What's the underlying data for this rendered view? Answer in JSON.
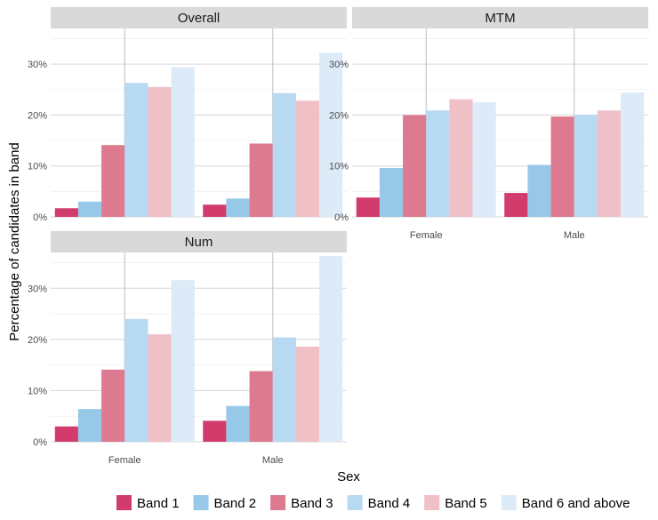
{
  "chart_data": {
    "type": "bar",
    "xlabel": "Sex",
    "ylabel": "Percentage of candidates in band",
    "ylim": [
      0,
      37
    ],
    "yticks": [
      "0%",
      "10%",
      "20%",
      "30%"
    ],
    "categories": [
      "Female",
      "Male"
    ],
    "legend_position": "bottom",
    "grid": true,
    "series_names": [
      "Band 1",
      "Band 2",
      "Band 3",
      "Band 4",
      "Band 5",
      "Band 6 and above"
    ],
    "colors": [
      "#d13c6c",
      "#97c8e8",
      "#de7a8f",
      "#b8d9f2",
      "#f0c0c7",
      "#ddeaf7"
    ],
    "panels": [
      {
        "title": "Overall",
        "values": {
          "Female": [
            1.7,
            3.0,
            14.1,
            26.3,
            25.5,
            29.4
          ],
          "Male": [
            2.4,
            3.6,
            14.4,
            24.3,
            22.8,
            32.2
          ]
        }
      },
      {
        "title": "MTM",
        "values": {
          "Female": [
            3.8,
            9.6,
            20.0,
            20.9,
            23.1,
            22.5
          ],
          "Male": [
            4.7,
            10.2,
            19.7,
            20.0,
            20.9,
            24.4
          ]
        }
      },
      {
        "title": "Num",
        "values": {
          "Female": [
            3.0,
            6.4,
            14.1,
            24.0,
            21.0,
            31.6
          ],
          "Male": [
            4.1,
            7.0,
            13.8,
            20.4,
            18.6,
            36.3
          ]
        }
      }
    ]
  }
}
